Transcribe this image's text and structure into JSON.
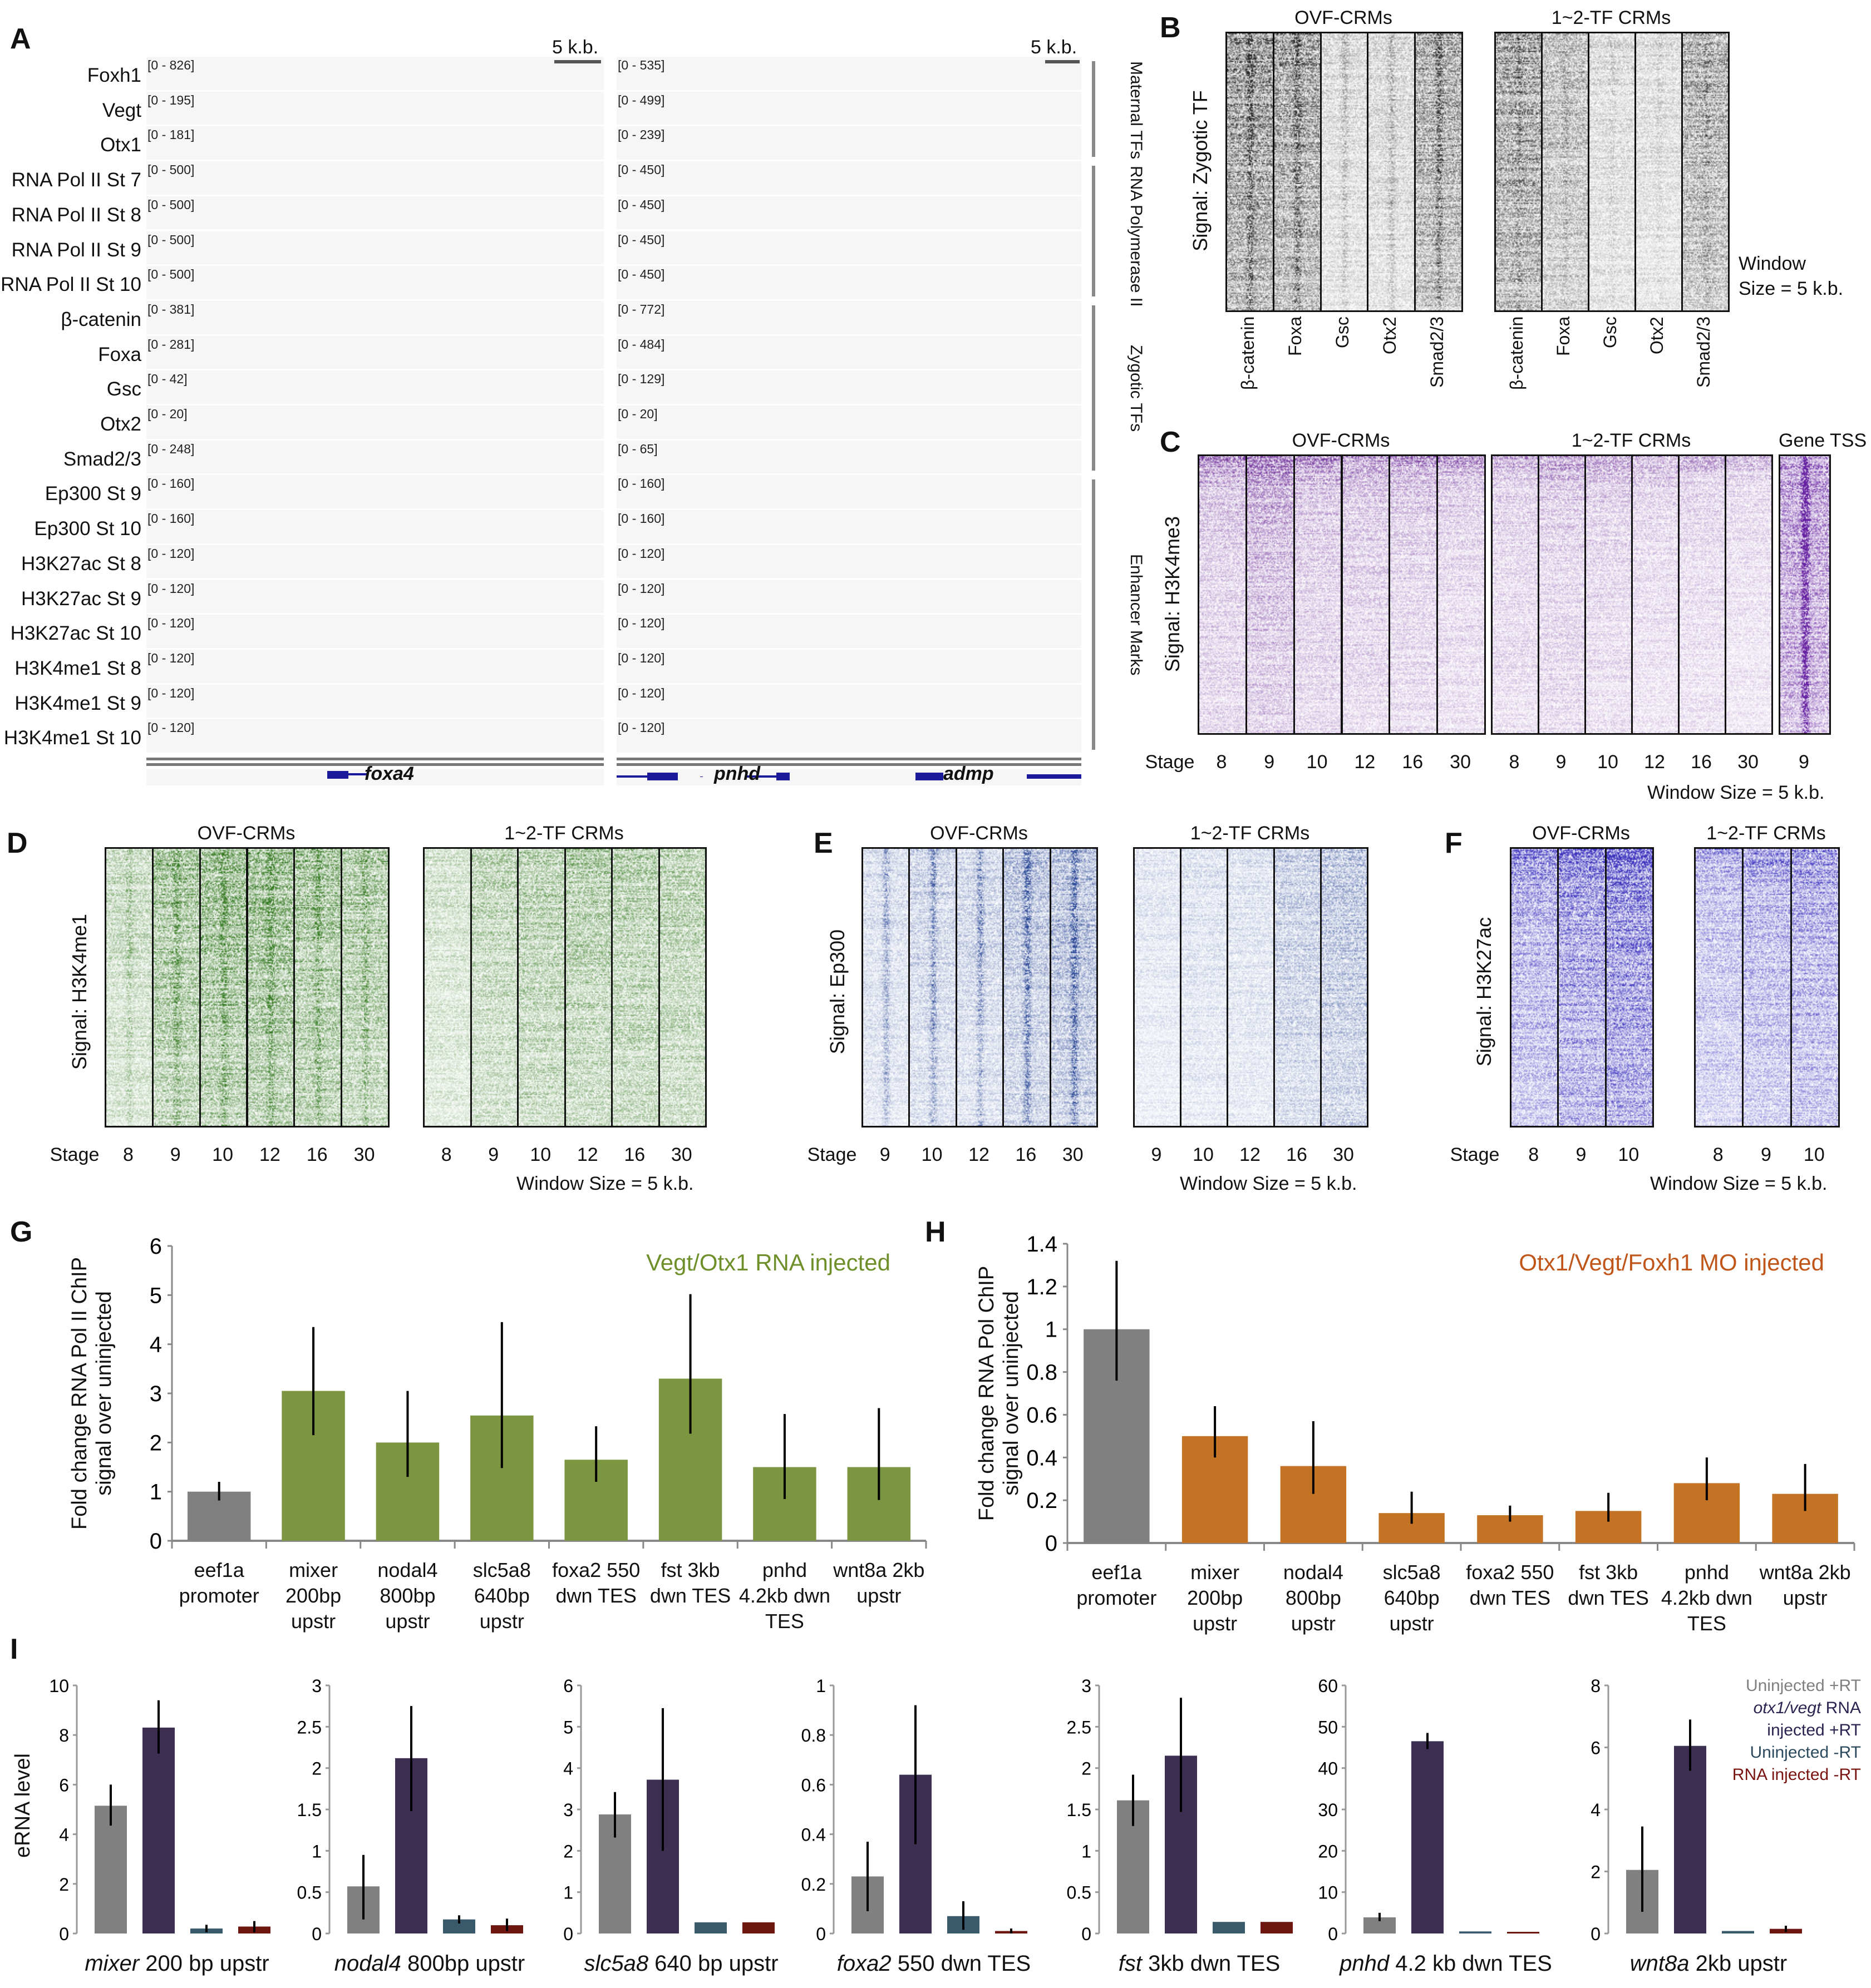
{
  "panelA": {
    "label": "A",
    "scale_left": "5 k.b.",
    "scale_right": "5 k.b.",
    "tracks": [
      {
        "name": "Foxh1",
        "range_left": "[0 - 826]",
        "range_right": "[0 - 535]",
        "color": "#d41e1e"
      },
      {
        "name": "Vegt",
        "range_left": "[0 - 195]",
        "range_right": "[0 - 499]",
        "color": "#2f7a18"
      },
      {
        "name": "Otx1",
        "range_left": "[0 - 181]",
        "range_right": "[0 - 239]",
        "color": "#e8891c"
      },
      {
        "name": "RNA Pol II St 7",
        "range_left": "[0 - 500]",
        "range_right": "[0 - 450]",
        "color": "#6b6a18"
      },
      {
        "name": "RNA Pol II St 8",
        "range_left": "[0 - 500]",
        "range_right": "[0 - 450]",
        "color": "#6b6a18"
      },
      {
        "name": "RNA Pol II St 9",
        "range_left": "[0 - 500]",
        "range_right": "[0 - 450]",
        "color": "#6b6a18"
      },
      {
        "name": "RNA Pol II St 10",
        "range_left": "[0 - 500]",
        "range_right": "[0 - 450]",
        "color": "#6b6a18"
      },
      {
        "name": "β-catenin",
        "range_left": "[0 - 381]",
        "range_right": "[0 - 772]",
        "color": "#a21cc4"
      },
      {
        "name": "Foxa",
        "range_left": "[0 - 281]",
        "range_right": "[0 - 484]",
        "color": "#4dbfc2"
      },
      {
        "name": "Gsc",
        "range_left": "[0 - 42]",
        "range_right": "[0 - 129]",
        "color": "#c6c81e"
      },
      {
        "name": "Otx2",
        "range_left": "[0 - 20]",
        "range_right": "[0 - 20]",
        "color": "#a646f0"
      },
      {
        "name": "Smad2/3",
        "range_left": "[0 - 248]",
        "range_right": "[0 - 65]",
        "color": "#3a8a82"
      },
      {
        "name": "Ep300 St 9",
        "range_left": "[0 - 160]",
        "range_right": "[0 - 160]",
        "color": "#e0692e"
      },
      {
        "name": "Ep300 St 10",
        "range_left": "[0 - 160]",
        "range_right": "[0 - 160]",
        "color": "#e0692e"
      },
      {
        "name": "H3K27ac St 8",
        "range_left": "[0 - 120]",
        "range_right": "[0 - 120]",
        "color": "#5a12a2"
      },
      {
        "name": "H3K27ac St 9",
        "range_left": "[0 - 120]",
        "range_right": "[0 - 120]",
        "color": "#5a12a2"
      },
      {
        "name": "H3K27ac St 10",
        "range_left": "[0 - 120]",
        "range_right": "[0 - 120]",
        "color": "#5a12a2"
      },
      {
        "name": "H3K4me1 St 8",
        "range_left": "[0 - 120]",
        "range_right": "[0 - 120]",
        "color": "#7470f2"
      },
      {
        "name": "H3K4me1 St 9",
        "range_left": "[0 - 120]",
        "range_right": "[0 - 120]",
        "color": "#7470f2"
      },
      {
        "name": "H3K4me1 St 10",
        "range_left": "[0 - 120]",
        "range_right": "[0 - 120]",
        "color": "#7470f2"
      }
    ],
    "groups": [
      {
        "label": "Maternal TFs",
        "first": 0,
        "last": 2
      },
      {
        "label": "RNA Polymerase II",
        "first": 3,
        "last": 6
      },
      {
        "label": "Zygotic TFs",
        "first": 7,
        "last": 11
      },
      {
        "label": "Enhancer Marks",
        "first": 12,
        "last": 19
      }
    ],
    "genes_left": [
      "foxa4"
    ],
    "genes_right": [
      "pnhd",
      "admp"
    ],
    "gene_color": "#1a1a9a"
  },
  "panelB": {
    "label": "B",
    "signal": "Signal: Zygotic TF",
    "ovf_title": "OVF-CRMs",
    "tf_title": "1~2-TF CRMs",
    "columns": [
      "β-catenin",
      "Foxa",
      "Gsc",
      "Otx2",
      "Smad2/3"
    ],
    "window_line1": "Window",
    "window_line2": "Size = 5 k.b."
  },
  "panelC": {
    "label": "C",
    "signal": "Signal: H3K4me3",
    "ovf_title": "OVF-CRMs",
    "tf_title": "1~2-TF CRMs",
    "tss_title": "Gene TSS",
    "stage_label": "Stage",
    "ovf_stages": [
      "8",
      "9",
      "10",
      "12",
      "16",
      "30"
    ],
    "tf_stages": [
      "8",
      "9",
      "10",
      "12",
      "16",
      "30"
    ],
    "tss_stages": [
      "9"
    ],
    "window": "Window Size = 5 k.b."
  },
  "panelD": {
    "label": "D",
    "signal": "Signal: H3K4me1",
    "ovf_title": "OVF-CRMs",
    "tf_title": "1~2-TF CRMs",
    "stage_label": "Stage",
    "ovf_stages": [
      "8",
      "9",
      "10",
      "12",
      "16",
      "30"
    ],
    "tf_stages": [
      "8",
      "9",
      "10",
      "12",
      "16",
      "30"
    ],
    "window": "Window Size = 5 k.b."
  },
  "panelE": {
    "label": "E",
    "signal": "Signal: Ep300",
    "ovf_title": "OVF-CRMs",
    "tf_title": "1~2-TF CRMs",
    "stage_label": "Stage",
    "ovf_stages": [
      "9",
      "10",
      "12",
      "16",
      "30"
    ],
    "tf_stages": [
      "9",
      "10",
      "12",
      "16",
      "30"
    ],
    "window": "Window Size = 5 k.b."
  },
  "panelF": {
    "label": "F",
    "signal": "Signal: H3K27ac",
    "ovf_title": "OVF-CRMs",
    "tf_title": "1~2-TF CRMs",
    "stage_label": "Stage",
    "ovf_stages": [
      "8",
      "9",
      "10"
    ],
    "tf_stages": [
      "8",
      "9",
      "10"
    ],
    "window": "Window Size = 5 k.b."
  },
  "chart_data": [
    {
      "panel": "G",
      "type": "bar",
      "ylabel_line1": "Fold change RNA Pol II ChIP",
      "ylabel_line2": "signal over uninjected",
      "annotation": "Vegt/Otx1 RNA injected",
      "annotation_color": "#6f8f2a",
      "categories": [
        "eef1a promoter",
        "mixer 200bp upstr",
        "nodal4 800bp upstr",
        "slc5a8 640bp upstr",
        "foxa2 550 dwn TES",
        "fst 3kb dwn TES",
        "pnhd 4.2kb dwn TES",
        "wnt8a 2kb upstr"
      ],
      "values": [
        1.0,
        3.05,
        2.0,
        2.55,
        1.65,
        3.3,
        1.5,
        1.5
      ],
      "error_low": [
        0.82,
        2.15,
        1.3,
        1.48,
        1.2,
        2.18,
        0.85,
        0.83
      ],
      "error_high": [
        1.2,
        4.35,
        3.05,
        4.45,
        2.33,
        5.02,
        2.58,
        2.7
      ],
      "bar_colors": [
        "#808080",
        "#7b9540",
        "#7b9540",
        "#7b9540",
        "#7b9540",
        "#7b9540",
        "#7b9540",
        "#7b9540"
      ],
      "ylim": [
        0,
        6
      ],
      "yticks": [
        "0",
        "1",
        "2",
        "3",
        "4",
        "5",
        "6"
      ],
      "grid": false
    },
    {
      "panel": "H",
      "type": "bar",
      "ylabel_line1": "Fold change RNA Pol ChIP",
      "ylabel_line2": "signal over uninjected",
      "annotation": "Otx1/Vegt/Foxh1 MO injected",
      "annotation_color": "#c0561a",
      "categories": [
        "eef1a promoter",
        "mixer 200bp upstr",
        "nodal4 800bp upstr",
        "slc5a8 640bp upstr",
        "foxa2 550 dwn TES",
        "fst 3kb dwn TES",
        "pnhd 4.2kb dwn TES",
        "wnt8a 2kb upstr"
      ],
      "values": [
        1.0,
        0.5,
        0.36,
        0.14,
        0.13,
        0.15,
        0.28,
        0.23
      ],
      "error_low": [
        0.76,
        0.4,
        0.23,
        0.09,
        0.1,
        0.1,
        0.2,
        0.15
      ],
      "error_high": [
        1.32,
        0.64,
        0.57,
        0.24,
        0.175,
        0.235,
        0.4,
        0.37
      ],
      "bar_colors": [
        "#808080",
        "#c47223",
        "#c47223",
        "#c47223",
        "#c47223",
        "#c47223",
        "#c47223",
        "#c47223"
      ],
      "ylim": [
        0,
        1.4
      ],
      "yticks": [
        "0",
        "0.2",
        "0.4",
        "0.6",
        "0.8",
        "1",
        "1.2",
        "1.4"
      ],
      "grid": false
    },
    {
      "panel": "I",
      "type": "bar",
      "ylabel": "eRNA level",
      "legend": [
        {
          "pre": "Uninjected +RT",
          "italic": "",
          "post": "",
          "color": "#808080"
        },
        {
          "pre": "",
          "italic": "otx1/vegt",
          "post": " RNA",
          "color": "#2c2350"
        },
        {
          "pre": "injected +RT",
          "italic": "",
          "post": "",
          "color": "#2c2350"
        },
        {
          "pre": "Uninjected -RT",
          "italic": "",
          "post": "",
          "color": "#2c4a5e"
        },
        {
          "pre": "RNA injected -RT",
          "italic": "",
          "post": "",
          "color": "#7a1410"
        }
      ],
      "legend_placement": "top-right",
      "series_colors": [
        "#808080",
        "#3c2f52",
        "#3a5a6c",
        "#6e1610"
      ],
      "subplots": [
        {
          "gene": "mixer",
          "suffix": " 200 bp upstr",
          "ylim": [
            0,
            10
          ],
          "yticks": [
            "0",
            "2",
            "4",
            "6",
            "8",
            "10"
          ],
          "values": [
            5.15,
            8.3,
            0.2,
            0.28
          ],
          "error_low": [
            4.35,
            7.25,
            0.05,
            0.05
          ],
          "error_high": [
            6.0,
            9.4,
            0.35,
            0.5
          ]
        },
        {
          "gene": "nodal4",
          "suffix": " 800bp upstr",
          "ylim": [
            0,
            3
          ],
          "yticks": [
            "0",
            "0.5",
            "1",
            "1.5",
            "2",
            "2.5",
            "3"
          ],
          "values": [
            0.57,
            2.12,
            0.17,
            0.1
          ],
          "error_low": [
            0.17,
            1.48,
            0.12,
            0.03
          ],
          "error_high": [
            0.95,
            2.75,
            0.22,
            0.18
          ]
        },
        {
          "gene": "slc5a8",
          "suffix": " 640 bp upstr",
          "ylim": [
            0,
            6
          ],
          "yticks": [
            "0",
            "1",
            "2",
            "3",
            "4",
            "5",
            "6"
          ],
          "values": [
            2.88,
            3.72,
            0.27,
            0.27
          ],
          "error_low": [
            2.32,
            2.0,
            null,
            null
          ],
          "error_high": [
            3.42,
            5.45,
            null,
            null
          ]
        },
        {
          "gene": "foxa2",
          "suffix": " 550 dwn TES",
          "ylim": [
            0,
            1
          ],
          "yticks": [
            "0",
            "0.2",
            "0.4",
            "0.6",
            "0.8",
            "1"
          ],
          "values": [
            0.23,
            0.64,
            0.07,
            0.01
          ],
          "error_low": [
            0.09,
            0.36,
            0.015,
            0.0
          ],
          "error_high": [
            0.37,
            0.92,
            0.13,
            0.02
          ]
        },
        {
          "gene": "fst",
          "suffix": " 3kb dwn TES",
          "ylim": [
            0,
            3
          ],
          "yticks": [
            "0",
            "0.5",
            "1",
            "1.5",
            "2",
            "2.5",
            "3"
          ],
          "values": [
            1.61,
            2.15,
            0.14,
            0.14
          ],
          "error_low": [
            1.3,
            1.47,
            null,
            null
          ],
          "error_high": [
            1.92,
            2.85,
            null,
            null
          ]
        },
        {
          "gene": "pnhd",
          "suffix": " 4.2 kb dwn TES",
          "ylim": [
            0,
            60
          ],
          "yticks": [
            "0",
            "10",
            "20",
            "30",
            "40",
            "50",
            "60"
          ],
          "values": [
            3.9,
            46.5,
            0.5,
            0.4
          ],
          "error_low": [
            3.0,
            44.6,
            null,
            null
          ],
          "error_high": [
            5.0,
            48.5,
            null,
            null
          ]
        },
        {
          "gene": "wnt8a",
          "suffix": " 2kb upstr",
          "ylim": [
            0,
            8
          ],
          "yticks": [
            "0",
            "2",
            "4",
            "6",
            "8"
          ],
          "values": [
            2.05,
            6.05,
            0.08,
            0.15
          ],
          "error_low": [
            0.7,
            5.25,
            null,
            0.05
          ],
          "error_high": [
            3.45,
            6.9,
            null,
            0.25
          ]
        }
      ]
    }
  ]
}
